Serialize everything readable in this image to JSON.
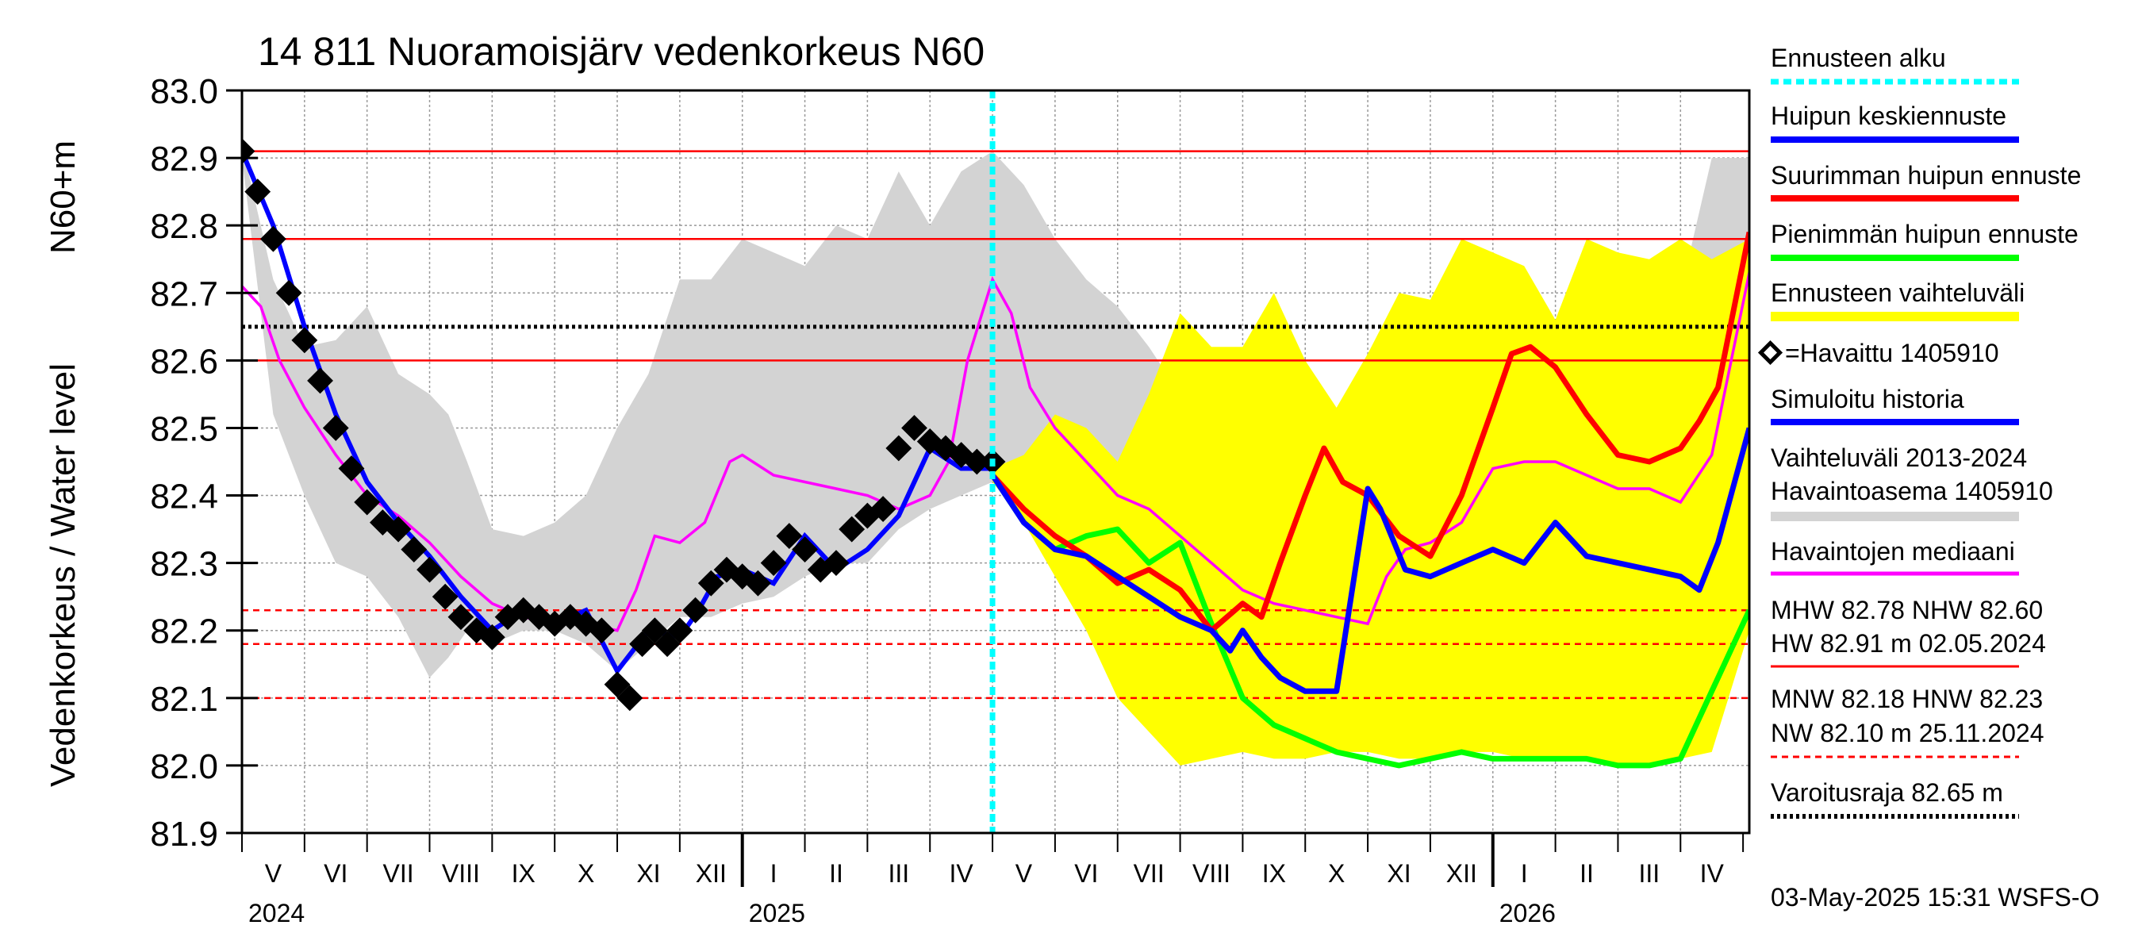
{
  "chart_data": {
    "type": "line",
    "title": "14 811 Nuoramoisjärv vedenkorkeus N60",
    "ylabel": "Vedenkorkeus / Water level",
    "ylabel2": "N60+m",
    "ylim": [
      81.9,
      83.0
    ],
    "yticks": [
      "83.0",
      "82.9",
      "82.8",
      "82.7",
      "82.6",
      "82.5",
      "82.4",
      "82.3",
      "82.2",
      "82.1",
      "82.0",
      "81.9"
    ],
    "x_months": [
      "V",
      "VI",
      "VII",
      "VIII",
      "IX",
      "X",
      "XI",
      "XII",
      "I",
      "II",
      "III",
      "IV",
      "V",
      "VI",
      "VII",
      "VIII",
      "IX",
      "X",
      "XI",
      "XII",
      "I",
      "II",
      "III",
      "IV"
    ],
    "x_years": [
      {
        "label": "2024",
        "month_index": 0
      },
      {
        "label": "2025",
        "month_index": 8
      },
      {
        "label": "2026",
        "month_index": 20
      }
    ],
    "x_range_months": [
      0,
      24.1
    ],
    "forecast_start_month": 12.0,
    "reference_lines": [
      {
        "name": "HW",
        "value": 82.91,
        "style": "solid",
        "color": "#ff0000"
      },
      {
        "name": "MHW",
        "value": 82.78,
        "style": "solid",
        "color": "#ff0000"
      },
      {
        "name": "NHW",
        "value": 82.6,
        "style": "solid",
        "color": "#ff0000"
      },
      {
        "name": "Varoitusraja",
        "value": 82.65,
        "style": "dotted",
        "color": "#000000"
      },
      {
        "name": "HNW",
        "value": 82.23,
        "style": "dashed",
        "color": "#ff0000"
      },
      {
        "name": "MNW",
        "value": 82.18,
        "style": "dashed",
        "color": "#ff0000"
      },
      {
        "name": "NW",
        "value": 82.1,
        "style": "dashed",
        "color": "#ff0000"
      }
    ],
    "series": [
      {
        "name": "Vaihteluväli 2013-2024 Havaintoasema 1405910",
        "kind": "band",
        "color": "#d3d3d3",
        "x": [
          0,
          0.5,
          1,
          1.5,
          2,
          2.5,
          3,
          3.3,
          3.6,
          4,
          4.5,
          5,
          5.5,
          6,
          6.5,
          7,
          7.5,
          8,
          8.5,
          9,
          9.5,
          10,
          10.5,
          11,
          11.5,
          12,
          12.5,
          13,
          13.5,
          14,
          14.5,
          15,
          15.5,
          16,
          16.5,
          17,
          17.5,
          18,
          18.5,
          19,
          19.5,
          20,
          20.5,
          21,
          21.5,
          22,
          22.5,
          23,
          23.5,
          24.1
        ],
        "upper": [
          82.92,
          82.72,
          82.62,
          82.63,
          82.68,
          82.58,
          82.55,
          82.52,
          82.45,
          82.35,
          82.34,
          82.36,
          82.4,
          82.5,
          82.58,
          82.72,
          82.72,
          82.78,
          82.76,
          82.74,
          82.8,
          82.78,
          82.88,
          82.8,
          82.88,
          82.91,
          82.86,
          82.78,
          82.72,
          82.68,
          82.62,
          82.55,
          82.48,
          82.42,
          82.4,
          82.42,
          82.5,
          82.56,
          82.6,
          82.62,
          82.64,
          82.68,
          82.7,
          82.66,
          82.68,
          82.72,
          82.74,
          82.7,
          82.9,
          82.9
        ],
        "lower": [
          82.9,
          82.52,
          82.4,
          82.3,
          82.28,
          82.22,
          82.13,
          82.16,
          82.2,
          82.18,
          82.2,
          82.2,
          82.18,
          82.14,
          82.18,
          82.22,
          82.22,
          82.24,
          82.25,
          82.28,
          82.3,
          82.3,
          82.35,
          82.38,
          82.4,
          82.42,
          82.36,
          82.3,
          82.26,
          82.24,
          82.18,
          82.14,
          82.12,
          82.1,
          82.08,
          82.1,
          82.12,
          82.15,
          82.17,
          82.18,
          82.16,
          82.18,
          82.19,
          82.2,
          82.2,
          82.21,
          82.2,
          82.22,
          82.3,
          82.42
        ]
      },
      {
        "name": "Ennusteen vaihteluväli",
        "kind": "band",
        "color": "#ffff00",
        "x": [
          12.0,
          12.5,
          13,
          13.5,
          14,
          14.5,
          15,
          15.5,
          16,
          16.5,
          17,
          17.5,
          18,
          18.5,
          19,
          19.5,
          20,
          20.5,
          21,
          21.5,
          22,
          22.5,
          23,
          23.5,
          24.1
        ],
        "upper": [
          82.44,
          82.46,
          82.52,
          82.5,
          82.45,
          82.55,
          82.67,
          82.62,
          82.62,
          82.7,
          82.6,
          82.53,
          82.61,
          82.7,
          82.69,
          82.78,
          82.76,
          82.74,
          82.66,
          82.78,
          82.76,
          82.75,
          82.78,
          82.75,
          82.78
        ],
        "lower": [
          82.42,
          82.36,
          82.28,
          82.2,
          82.1,
          82.05,
          82.0,
          82.01,
          82.02,
          82.01,
          82.01,
          82.02,
          82.02,
          82.01,
          82.01,
          82.02,
          82.02,
          82.01,
          82.01,
          82.01,
          82.0,
          82.0,
          82.01,
          82.02,
          82.2
        ]
      },
      {
        "name": "Havaintojen mediaani",
        "color": "#ff00ff",
        "x": [
          0,
          0.3,
          0.6,
          1,
          1.5,
          2,
          2.5,
          3,
          3.5,
          4,
          4.5,
          5,
          5.5,
          6,
          6.3,
          6.6,
          7,
          7.4,
          7.8,
          8,
          8.5,
          9,
          9.5,
          10,
          10.5,
          11,
          11.3,
          11.6,
          12,
          12.3,
          12.6,
          13,
          13.5,
          14,
          14.5,
          15,
          15.5,
          16,
          16.5,
          17,
          17.5,
          18,
          18.3,
          18.6,
          19,
          19.5,
          20,
          20.5,
          21,
          21.5,
          22,
          22.5,
          23,
          23.5,
          24.1
        ],
        "y": [
          82.71,
          82.68,
          82.6,
          82.53,
          82.46,
          82.4,
          82.37,
          82.33,
          82.28,
          82.24,
          82.22,
          82.21,
          82.21,
          82.2,
          82.26,
          82.34,
          82.33,
          82.36,
          82.45,
          82.46,
          82.43,
          82.42,
          82.41,
          82.4,
          82.38,
          82.4,
          82.45,
          82.6,
          82.72,
          82.67,
          82.56,
          82.5,
          82.45,
          82.4,
          82.38,
          82.34,
          82.3,
          82.26,
          82.24,
          82.23,
          82.22,
          82.21,
          82.28,
          82.32,
          82.33,
          82.36,
          82.44,
          82.45,
          82.45,
          82.43,
          82.41,
          82.41,
          82.39,
          82.46,
          82.73
        ]
      },
      {
        "name": "Simuloitu historia",
        "color": "#0000ff",
        "x": [
          0,
          0.5,
          1,
          1.5,
          2,
          2.5,
          3,
          3.5,
          4,
          4.5,
          5,
          5.5,
          6,
          6.5,
          7,
          7.3,
          7.6,
          8,
          8.5,
          9,
          9.5,
          10,
          10.5,
          11,
          11.5,
          12
        ],
        "y": [
          82.91,
          82.8,
          82.65,
          82.52,
          82.42,
          82.36,
          82.31,
          82.25,
          82.2,
          82.23,
          82.21,
          82.23,
          82.14,
          82.2,
          82.19,
          82.23,
          82.28,
          82.29,
          82.27,
          82.34,
          82.29,
          82.32,
          82.37,
          82.47,
          82.44,
          82.44
        ]
      },
      {
        "name": "Huipun keskiennuste",
        "color": "#0000ff",
        "x": [
          12.0,
          12.5,
          13,
          13.5,
          14,
          14.5,
          15,
          15.5,
          15.8,
          16,
          16.3,
          16.6,
          17,
          17.5,
          18.0,
          18.2,
          18.6,
          19,
          19.5,
          20,
          20.5,
          21,
          21.5,
          22,
          22.5,
          23,
          23.3,
          23.6,
          24.1
        ],
        "y": [
          82.43,
          82.36,
          82.32,
          82.31,
          82.28,
          82.25,
          82.22,
          82.2,
          82.17,
          82.2,
          82.16,
          82.13,
          82.11,
          82.11,
          82.41,
          82.38,
          82.29,
          82.28,
          82.3,
          82.32,
          82.3,
          82.36,
          82.31,
          82.3,
          82.29,
          82.28,
          82.26,
          82.33,
          82.5
        ]
      },
      {
        "name": "Suurimman huipun ennuste",
        "color": "#ff0000",
        "x": [
          12.0,
          12.5,
          13,
          13.5,
          14,
          14.5,
          15,
          15.5,
          16,
          16.3,
          16.6,
          17,
          17.3,
          17.6,
          18,
          18.5,
          19,
          19.5,
          20,
          20.3,
          20.6,
          21,
          21.5,
          22,
          22.5,
          23,
          23.3,
          23.6,
          24.1
        ],
        "y": [
          82.43,
          82.38,
          82.34,
          82.31,
          82.27,
          82.29,
          82.26,
          82.2,
          82.24,
          82.22,
          82.3,
          82.4,
          82.47,
          82.42,
          82.4,
          82.34,
          82.31,
          82.4,
          82.53,
          82.61,
          82.62,
          82.59,
          82.52,
          82.46,
          82.45,
          82.47,
          82.51,
          82.56,
          82.79
        ]
      },
      {
        "name": "Pienimmän huipun ennuste",
        "color": "#00ff00",
        "x": [
          12.0,
          12.5,
          13,
          13.5,
          14,
          14.5,
          15,
          15.5,
          16,
          16.5,
          17,
          17.5,
          18,
          18.5,
          19,
          19.5,
          20,
          20.5,
          21,
          21.5,
          22,
          22.5,
          23,
          23.3,
          23.6,
          24.1
        ],
        "y": [
          82.43,
          82.36,
          82.32,
          82.34,
          82.35,
          82.3,
          82.33,
          82.21,
          82.1,
          82.06,
          82.04,
          82.02,
          82.01,
          82.0,
          82.01,
          82.02,
          82.01,
          82.01,
          82.01,
          82.01,
          82.0,
          82.0,
          82.01,
          82.07,
          82.13,
          82.23
        ]
      },
      {
        "name": "Havaittu 1405910",
        "kind": "markers",
        "color": "#000000",
        "x": [
          0,
          0.25,
          0.5,
          0.75,
          1.0,
          1.25,
          1.5,
          1.75,
          2.0,
          2.25,
          2.5,
          2.75,
          3.0,
          3.25,
          3.5,
          3.75,
          4.0,
          4.25,
          4.5,
          4.75,
          5.0,
          5.25,
          5.5,
          5.75,
          6.0,
          6.2,
          6.4,
          6.6,
          6.8,
          7.0,
          7.25,
          7.5,
          7.75,
          8.0,
          8.25,
          8.5,
          8.75,
          9.0,
          9.25,
          9.5,
          9.75,
          10.0,
          10.25,
          10.5,
          10.75,
          11.0,
          11.25,
          11.5,
          11.75,
          12.0
        ],
        "y": [
          82.91,
          82.85,
          82.78,
          82.7,
          82.63,
          82.57,
          82.5,
          82.44,
          82.39,
          82.36,
          82.35,
          82.32,
          82.29,
          82.25,
          82.22,
          82.2,
          82.19,
          82.22,
          82.23,
          82.22,
          82.21,
          82.22,
          82.21,
          82.2,
          82.12,
          82.1,
          82.18,
          82.2,
          82.18,
          82.2,
          82.23,
          82.27,
          82.29,
          82.28,
          82.27,
          82.3,
          82.34,
          82.32,
          82.29,
          82.3,
          82.35,
          82.37,
          82.38,
          82.47,
          82.5,
          82.48,
          82.47,
          82.46,
          82.45,
          82.45
        ]
      }
    ]
  },
  "legend": {
    "items": [
      {
        "label": "Ennusteen alku",
        "color": "#00ffff",
        "style": "dotted"
      },
      {
        "label": "Huipun keskiennuste",
        "color": "#0000ff",
        "style": "solid"
      },
      {
        "label": "Suurimman huipun ennuste",
        "color": "#ff0000",
        "style": "solid"
      },
      {
        "label": "Pienimmän huipun ennuste",
        "color": "#00ff00",
        "style": "solid"
      },
      {
        "label": "Ennusteen vaihteluväli",
        "color": "#ffff00",
        "style": "solid"
      },
      {
        "label": "=Havaittu 1405910",
        "color": "#000000",
        "style": "marker"
      },
      {
        "label": "Simuloitu historia",
        "color": "#0000ff",
        "style": "solid"
      },
      {
        "label_line1": "Vaihteluväli 2013-2024",
        "label_line2": " Havaintoasema 1405910",
        "color": "#d3d3d3",
        "style": "solid"
      },
      {
        "label": "Havaintojen mediaani",
        "color": "#ff00ff",
        "style": "solid"
      }
    ],
    "stats1_line1": "MHW  82.78 NHW  82.60",
    "stats1_line2": "HW  82.91 m 02.05.2024",
    "stats2_line1": "MNW  82.18 HNW  82.23",
    "stats2_line2": "NW  82.10 m 25.11.2024",
    "warning_label": "Varoitusraja 82.65 m"
  },
  "footer": {
    "timestamp": "03-May-2025 15:31 WSFS-O"
  }
}
